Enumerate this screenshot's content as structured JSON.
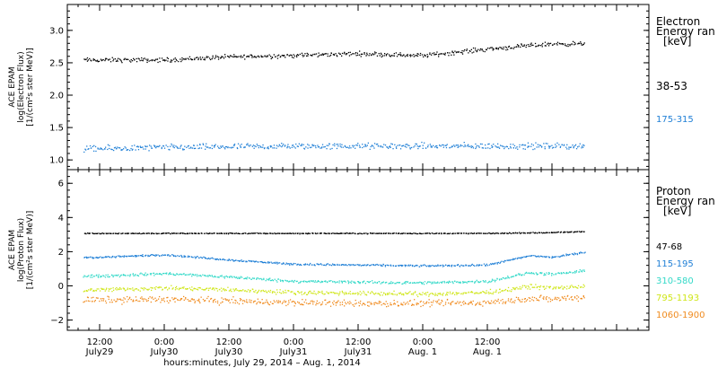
{
  "chart_data": [
    {
      "type": "scatter",
      "panel": "electron",
      "ylabel_lines": [
        "ACE EPAM",
        "log(Electron Flux)",
        "[1/(cm²s ster MeV)]"
      ],
      "ylim": [
        0.85,
        3.4
      ],
      "yticks": [
        1.0,
        1.5,
        2.0,
        2.5,
        3.0
      ],
      "ytick_labels": [
        "1.0",
        "1.5",
        "2.0",
        "2.5",
        "3.0"
      ],
      "legend_title": [
        "Electron",
        "Energy ran",
        "[keV]"
      ],
      "series": [
        {
          "name": "38-53",
          "color": "#000000",
          "x_hours": [
            0,
            12,
            24,
            36,
            48,
            60,
            72,
            84,
            90
          ],
          "values": [
            2.55,
            2.55,
            2.6,
            2.62,
            2.65,
            2.62,
            2.72,
            2.8,
            2.8
          ],
          "spread": 0.05
        },
        {
          "name": "175-315",
          "color": "#1f7fd6",
          "x_hours": [
            0,
            12,
            24,
            36,
            48,
            60,
            72,
            84,
            90
          ],
          "values": [
            1.18,
            1.2,
            1.21,
            1.22,
            1.22,
            1.22,
            1.22,
            1.22,
            1.22
          ],
          "spread": 0.07
        }
      ]
    },
    {
      "type": "scatter",
      "panel": "proton",
      "ylabel_lines": [
        "ACE EPAM",
        "log(Proton Flux)",
        "[1/(cm²s ster MeV)]"
      ],
      "ylim": [
        -2.6,
        6.8
      ],
      "yticks": [
        -2,
        0,
        2,
        4,
        6
      ],
      "ytick_labels": [
        "−2",
        "0",
        "2",
        "4",
        "6"
      ],
      "legend_title": [
        "Proton",
        "Energy ran",
        "[keV]"
      ],
      "series": [
        {
          "name": "47-68",
          "color": "#000000",
          "x_hours": [
            0,
            12,
            24,
            36,
            48,
            60,
            72,
            84,
            90
          ],
          "values": [
            3.1,
            3.1,
            3.1,
            3.1,
            3.1,
            3.1,
            3.1,
            3.15,
            3.2
          ],
          "spread": 0.04
        },
        {
          "name": "115-195",
          "color": "#1f7fd6",
          "x_hours": [
            0,
            12,
            24,
            36,
            48,
            60,
            72,
            80,
            84,
            90
          ],
          "values": [
            1.7,
            1.85,
            1.55,
            1.3,
            1.25,
            1.2,
            1.25,
            1.8,
            1.7,
            2.0
          ],
          "spread": 0.08
        },
        {
          "name": "310-580",
          "color": "#33d9c8",
          "x_hours": [
            0,
            12,
            24,
            36,
            48,
            60,
            72,
            80,
            84,
            90
          ],
          "values": [
            0.6,
            0.75,
            0.55,
            0.3,
            0.25,
            0.2,
            0.3,
            0.8,
            0.7,
            0.9
          ],
          "spread": 0.12
        },
        {
          "name": "795-1193",
          "color": "#cfe619",
          "x_hours": [
            0,
            12,
            24,
            36,
            48,
            60,
            72,
            80,
            84,
            90
          ],
          "values": [
            -0.2,
            -0.1,
            -0.2,
            -0.35,
            -0.4,
            -0.45,
            -0.35,
            0.0,
            -0.1,
            0.0
          ],
          "spread": 0.18
        },
        {
          "name": "1060-1900",
          "color": "#f08b1f",
          "x_hours": [
            0,
            12,
            24,
            36,
            48,
            60,
            72,
            80,
            84,
            90
          ],
          "values": [
            -0.8,
            -0.75,
            -0.85,
            -0.95,
            -1.0,
            -1.0,
            -0.95,
            -0.7,
            -0.75,
            -0.6
          ],
          "spread": 0.28
        }
      ]
    }
  ],
  "x_axis": {
    "xlim_hours": [
      -6,
      102
    ],
    "ticks": [
      {
        "hour": 0,
        "top": "12:00",
        "bottom": "July29"
      },
      {
        "hour": 12,
        "top": "0:00",
        "bottom": "July30"
      },
      {
        "hour": 24,
        "top": "12:00",
        "bottom": "July30"
      },
      {
        "hour": 36,
        "top": "0:00",
        "bottom": "July31"
      },
      {
        "hour": 48,
        "top": "12:00",
        "bottom": "July31"
      },
      {
        "hour": 60,
        "top": "0:00",
        "bottom": "Aug. 1"
      },
      {
        "hour": 72,
        "top": "12:00",
        "bottom": "Aug. 1"
      }
    ],
    "label": "hours:minutes, July 29, 2014 – Aug. 1, 2014"
  }
}
